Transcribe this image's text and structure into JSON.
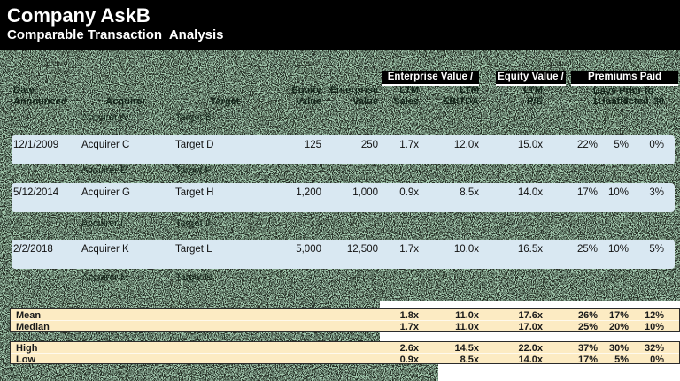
{
  "title": {
    "company": "Company AskB",
    "subtitle": "Comparable Transaction  Analysis"
  },
  "colors": {
    "header_bg": "#000000",
    "noise_green": "#578a67",
    "noise_dark": "#060a07",
    "row_blue": "#d9e8f2",
    "summary_tan": "#fcebc3",
    "chip_text": "#ffffff",
    "cell_text": "#111111"
  },
  "group_headers": {
    "enterprise": "Enterprise Value /",
    "equity": "Equity Value /",
    "premiums": "Premiums Paid"
  },
  "column_headers": {
    "date_line1": "Date",
    "date_line2": "Announced",
    "acquirer": "Acquirer",
    "target": "Target",
    "equity_line1": "Equity",
    "equity_line2": "Value",
    "enterprise_line1": "Enterprise",
    "enterprise_line2": "Value",
    "ev_sales_line1": "LTM",
    "ev_sales_line2": "Sales",
    "ev_ebitda_line1": "LTM",
    "ev_ebitda_line2": "EBITDA",
    "eq_pe_line1": "LTM",
    "eq_pe_line2": "P/E",
    "premiums_note": "Days Prior to Unaffected",
    "premium_days": [
      "1",
      "7",
      "30"
    ]
  },
  "rows": [
    {
      "visible": false,
      "acquirer": "Acquirer A",
      "target": "Target B"
    },
    {
      "visible": true,
      "date": "12/1/2009",
      "acquirer": "Acquirer C",
      "target": "Target D",
      "equity_value": "125",
      "enterprise_value": "250",
      "ev_sales": "1.7x",
      "ev_ebitda": "12.0x",
      "pe": "15.0x",
      "prem_1": "22%",
      "prem_7": "5%",
      "prem_30": "0%"
    },
    {
      "visible": false,
      "acquirer": "Acquirer E",
      "target": "Target F"
    },
    {
      "visible": true,
      "date": "5/12/2014",
      "acquirer": "Acquirer G",
      "target": "Target H",
      "equity_value": "1,200",
      "enterprise_value": "1,000",
      "ev_sales": "0.9x",
      "ev_ebitda": "8.5x",
      "pe": "14.0x",
      "prem_1": "17%",
      "prem_7": "10%",
      "prem_30": "3%"
    },
    {
      "visible": false,
      "acquirer": "Acquirer I",
      "target": "Target J"
    },
    {
      "visible": true,
      "date": "2/2/2018",
      "acquirer": "Acquirer K",
      "target": "Target L",
      "equity_value": "5,000",
      "enterprise_value": "12,500",
      "ev_sales": "1.7x",
      "ev_ebitda": "10.0x",
      "pe": "16.5x",
      "prem_1": "25%",
      "prem_7": "10%",
      "prem_30": "5%"
    },
    {
      "visible": false,
      "acquirer": "Acquirer M",
      "target": "Target N"
    }
  ],
  "summary": [
    {
      "label": "Mean",
      "values": [
        "1.8x",
        "11.0x",
        "17.6x",
        "26%",
        "17%",
        "12%"
      ]
    },
    {
      "label": "Median",
      "values": [
        "1.7x",
        "11.0x",
        "17.0x",
        "25%",
        "20%",
        "10%"
      ]
    },
    {
      "label": "High",
      "values": [
        "2.6x",
        "14.5x",
        "22.0x",
        "37%",
        "30%",
        "32%"
      ]
    },
    {
      "label": "Low",
      "values": [
        "0.9x",
        "8.5x",
        "14.0x",
        "17%",
        "5%",
        "0%"
      ]
    }
  ]
}
